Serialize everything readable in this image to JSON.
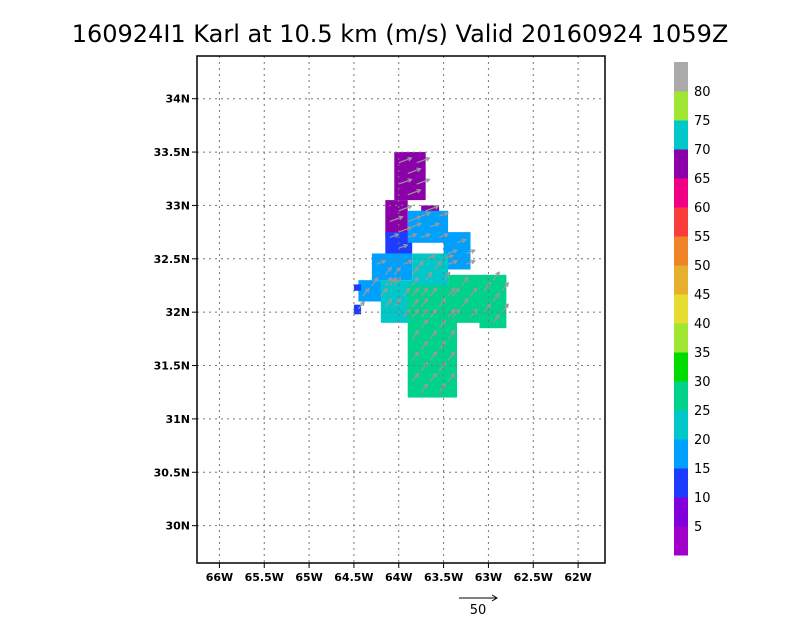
{
  "chart_data": {
    "type": "heatmap",
    "title": "160924I1 Karl at 10.5 km (m/s) Valid 20160924 1059Z",
    "x_ticks": [
      "66W",
      "65.5W",
      "65W",
      "64.5W",
      "64W",
      "63.5W",
      "63W",
      "62.5W",
      "62W"
    ],
    "y_ticks": [
      "34N",
      "33.5N",
      "33N",
      "32.5N",
      "32N",
      "31.5N",
      "31N",
      "30.5N",
      "30N"
    ],
    "xlim": [
      -66.25,
      -61.7
    ],
    "ylim": [
      29.65,
      34.4
    ],
    "grid": true,
    "colorbar": {
      "bounds": [
        0,
        5,
        10,
        15,
        20,
        25,
        30,
        35,
        40,
        45,
        50,
        55,
        60,
        65,
        70,
        75,
        80,
        85
      ],
      "labels": [
        "5",
        "10",
        "15",
        "20",
        "25",
        "30",
        "35",
        "40",
        "45",
        "50",
        "55",
        "60",
        "65",
        "70",
        "75",
        "80"
      ],
      "colors": [
        "#a000c8",
        "#8200dc",
        "#1e3cff",
        "#00a0ff",
        "#00c8c8",
        "#00d28c",
        "#00dc00",
        "#a0e632",
        "#e6dc32",
        "#e6af2d",
        "#f08228",
        "#fa3c3c",
        "#f00082",
        "#8c00aa",
        "#00c8c8",
        "#a0e632",
        "#aaaaaa"
      ]
    },
    "regions": [
      {
        "value": 67,
        "lon": [
          -64.05,
          -63.7
        ],
        "lat": [
          33.05,
          33.5
        ]
      },
      {
        "value": 67,
        "lon": [
          -64.15,
          -63.9
        ],
        "lat": [
          32.7,
          33.05
        ]
      },
      {
        "value": 65,
        "lon": [
          -63.75,
          -63.55
        ],
        "lat": [
          32.9,
          33.0
        ]
      },
      {
        "value": 13,
        "lon": [
          -64.15,
          -63.85
        ],
        "lat": [
          32.55,
          32.75
        ]
      },
      {
        "value": 16,
        "lon": [
          -63.9,
          -63.45
        ],
        "lat": [
          32.65,
          32.95
        ]
      },
      {
        "value": 16,
        "lon": [
          -63.5,
          -63.2
        ],
        "lat": [
          32.4,
          32.75
        ]
      },
      {
        "value": 18,
        "lon": [
          -64.3,
          -63.85
        ],
        "lat": [
          32.3,
          32.55
        ]
      },
      {
        "value": 19,
        "lon": [
          -64.45,
          -64.1
        ],
        "lat": [
          32.1,
          32.3
        ]
      },
      {
        "value": 21,
        "lon": [
          -64.2,
          -63.75
        ],
        "lat": [
          31.9,
          32.3
        ]
      },
      {
        "value": 22,
        "lon": [
          -63.85,
          -63.45
        ],
        "lat": [
          32.25,
          32.55
        ]
      },
      {
        "value": 26,
        "lon": [
          -63.9,
          -63.35
        ],
        "lat": [
          31.2,
          32.25
        ]
      },
      {
        "value": 26,
        "lon": [
          -63.45,
          -63.1
        ],
        "lat": [
          31.9,
          32.35
        ]
      },
      {
        "value": 26,
        "lon": [
          -63.1,
          -62.8
        ],
        "lat": [
          31.85,
          32.35
        ]
      },
      {
        "value": 12,
        "lon": [
          -64.5,
          -64.42
        ],
        "lat": [
          31.98,
          32.07
        ]
      },
      {
        "value": 14,
        "lon": [
          -64.5,
          -64.42
        ],
        "lat": [
          32.2,
          32.26
        ]
      }
    ],
    "wind_key": {
      "value": 50,
      "label": "50"
    }
  }
}
